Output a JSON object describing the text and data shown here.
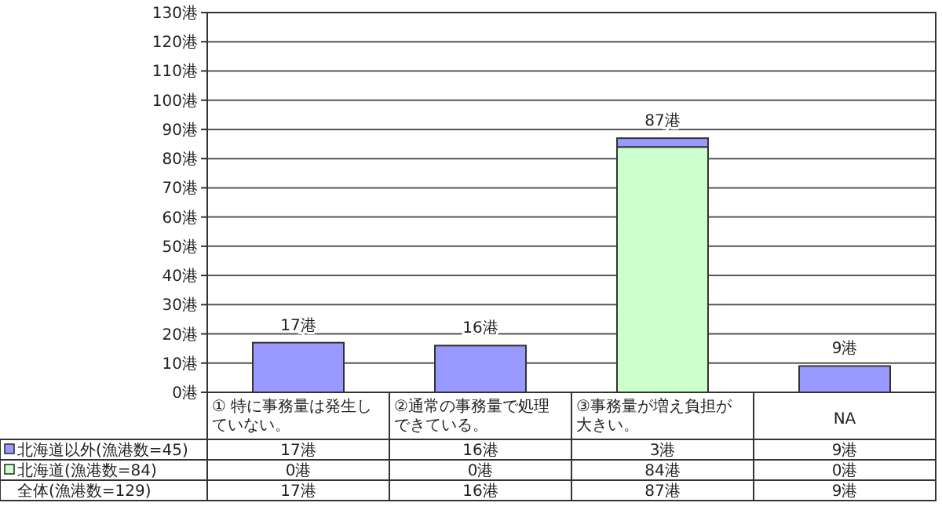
{
  "chart_data": {
    "type": "bar",
    "stacked": true,
    "categories": [
      "① 特に事務量は発生していない。",
      "②通常の事務量で処理できている。",
      "③事務量が増え負担が大きい。",
      "NA"
    ],
    "series": [
      {
        "name": "北海道(漁港数=84)",
        "color": "#ccffcc",
        "values": [
          0,
          0,
          84,
          0
        ],
        "value_labels": [
          "0港",
          "0港",
          "84港",
          "0港"
        ]
      },
      {
        "name": "北海道以外(漁港数=45)",
        "color": "#9999ff",
        "values": [
          17,
          16,
          3,
          9
        ],
        "value_labels": [
          "17港",
          "16港",
          "3港",
          "9港"
        ]
      }
    ],
    "totals": [
      "17港",
      "16港",
      "87港",
      "9港"
    ],
    "annotations": [
      "全体(漁港数=129)"
    ],
    "ylim": [
      0,
      130
    ],
    "yticks": [
      {
        "value": 0,
        "label": "0港"
      },
      {
        "value": 10,
        "label": "10港"
      },
      {
        "value": 20,
        "label": "20港"
      },
      {
        "value": 30,
        "label": "30港"
      },
      {
        "value": 40,
        "label": "40港"
      },
      {
        "value": 50,
        "label": "50港"
      },
      {
        "value": 60,
        "label": "60港"
      },
      {
        "value": 70,
        "label": "70港"
      },
      {
        "value": 80,
        "label": "80港"
      },
      {
        "value": 90,
        "label": "90港"
      },
      {
        "value": 100,
        "label": "100港"
      },
      {
        "value": 110,
        "label": "110港"
      },
      {
        "value": 120,
        "label": "120港"
      },
      {
        "value": 130,
        "label": "130港"
      }
    ],
    "grid": "y",
    "legend": "bottom left"
  }
}
